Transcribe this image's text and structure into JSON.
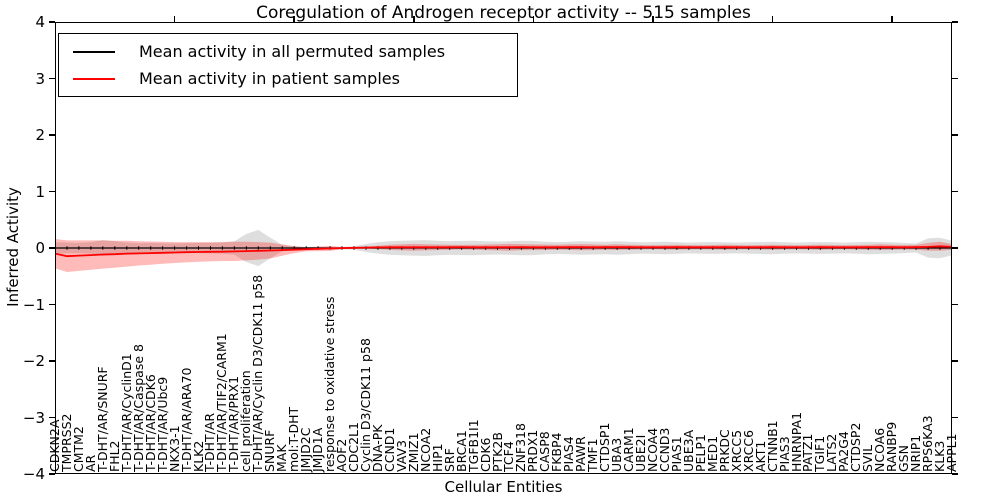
{
  "title": "Coregulation of Androgen receptor activity -- 515 samples",
  "axes": {
    "x_label": "Cellular Entities",
    "y_label": "Inferred Activity",
    "y_ticks": [
      {
        "value": 4,
        "label": "4"
      },
      {
        "value": 3,
        "label": "3"
      },
      {
        "value": 2,
        "label": "2"
      },
      {
        "value": 1,
        "label": "1"
      },
      {
        "value": 0,
        "label": "0"
      },
      {
        "value": -1,
        "label": "−1"
      },
      {
        "value": -2,
        "label": "−2"
      },
      {
        "value": -3,
        "label": "−3"
      },
      {
        "value": -4,
        "label": "−4"
      }
    ],
    "x_major_tick_positions": [
      10,
      20,
      30,
      40,
      50,
      60,
      70
    ]
  },
  "legend": {
    "entries": [
      {
        "label": "Mean activity in all permuted samples",
        "color": "#000000"
      },
      {
        "label": "Mean activity in patient samples",
        "color": "#ff0000"
      }
    ]
  },
  "chart_data": {
    "type": "line",
    "title": "Coregulation of Androgen receptor activity -- 515 samples",
    "xlabel": "Cellular Entities",
    "ylabel": "Inferred Activity",
    "ylim": [
      -4,
      4
    ],
    "xlim": [
      0,
      75
    ],
    "grid": false,
    "legend_position": "upper left",
    "categories": [
      "CDKN2A",
      "TMPRSS2",
      "CMTM2",
      "AR",
      "T-DHT/AR/SNURF",
      "FHL2",
      "T-DHT/AR/CyclinD1",
      "T-DHT/AR/Caspase 8",
      "T-DHT/AR/CDK6",
      "T-DHT/AR/Ubc9",
      "NKX3-1",
      "T-DHT/AR/ARA70",
      "KLK2",
      "T-DHT/AR",
      "T-DHT/AR/TIF2/CARM1",
      "T-DHT/AR/PRX1",
      "cell proliferation",
      "T-DHT/AR/Cyclin D3/CDK11 p58",
      "SNURF",
      "MAK",
      "mol:T-DHT",
      "JMJD2C",
      "JMJD1A",
      "response to oxidative stress",
      "AOF2",
      "CDC2L1",
      "Cyclin D3/CDK11 p58",
      "DNA-PK",
      "CCND1",
      "VAV3",
      "ZMIZ1",
      "NCOA2",
      "HIP1",
      "SRF",
      "BRCA1",
      "TGFB1I1",
      "CDK6",
      "PTK2B",
      "TCF4",
      "ZNF318",
      "PRDX1",
      "CASP8",
      "FKBP4",
      "PIAS4",
      "PAWR",
      "TMF1",
      "CTDSP1",
      "UBA3",
      "CARM1",
      "UBE2I",
      "NCOA4",
      "CCND3",
      "PIAS1",
      "UBE3A",
      "PELP1",
      "MED1",
      "PRKDC",
      "XRCC5",
      "XRCC6",
      "AKT1",
      "CTNNB1",
      "PIAS3",
      "HNRNPA1",
      "PATZ1",
      "TGIF1",
      "LATS2",
      "PA2G4",
      "CTDSP2",
      "SVIL",
      "NCOA6",
      "RANBP9",
      "GSN",
      "NRIP1",
      "RPS6KA3",
      "KLK3",
      "APPL1"
    ],
    "series": [
      {
        "name": "Mean activity in all permuted samples",
        "color": "#000000",
        "line_width": 1.2,
        "marker": "vertical-dash",
        "band_color": "#999999",
        "band_opacity": 0.32,
        "mean": 0,
        "std": [
          0.1,
          0.095,
          0.09,
          0.1,
          0.14,
          0.12,
          0.095,
          0.085,
          0.09,
          0.085,
          0.08,
          0.085,
          0.09,
          0.095,
          0.1,
          0.12,
          0.25,
          0.32,
          0.18,
          0.06,
          0.03,
          0.02,
          0.02,
          0.02,
          0.02,
          0.03,
          0.07,
          0.1,
          0.12,
          0.13,
          0.135,
          0.14,
          0.13,
          0.12,
          0.125,
          0.13,
          0.12,
          0.115,
          0.12,
          0.13,
          0.125,
          0.11,
          0.105,
          0.11,
          0.12,
          0.115,
          0.11,
          0.12,
          0.11,
          0.1,
          0.105,
          0.11,
          0.105,
          0.095,
          0.1,
          0.105,
          0.1,
          0.095,
          0.1,
          0.105,
          0.11,
          0.1,
          0.095,
          0.1,
          0.105,
          0.1,
          0.095,
          0.1,
          0.11,
          0.105,
          0.1,
          0.09,
          0.08,
          0.17,
          0.18,
          0.13
        ]
      },
      {
        "name": "Mean activity in patient samples",
        "color": "#ff0000",
        "line_width": 1.8,
        "marker": "none",
        "band_color": "#ff0000",
        "band_opacity": 0.27,
        "mean": [
          -0.1,
          -0.145,
          -0.135,
          -0.125,
          -0.115,
          -0.11,
          -0.1,
          -0.095,
          -0.09,
          -0.085,
          -0.08,
          -0.075,
          -0.07,
          -0.068,
          -0.065,
          -0.06,
          -0.055,
          -0.05,
          -0.045,
          -0.038,
          -0.03,
          -0.022,
          -0.015,
          -0.008,
          -0.002,
          0.003,
          0.007,
          0.01,
          0.012,
          0.012,
          0.013,
          0.013,
          0.012,
          0.013,
          0.014,
          0.013,
          0.012,
          0.013,
          0.013,
          0.014,
          0.013,
          0.012,
          0.013,
          0.015,
          0.014,
          0.013,
          0.014,
          0.015,
          0.014,
          0.013,
          0.012,
          0.013,
          0.014,
          0.013,
          0.012,
          0.013,
          0.014,
          0.013,
          0.012,
          0.013,
          0.014,
          0.013,
          0.012,
          0.013,
          0.014,
          0.013,
          0.012,
          0.013,
          0.014,
          0.015,
          0.014,
          0.013,
          0.014,
          0.02,
          0.03,
          0.02
        ],
        "std": [
          0.26,
          0.28,
          0.27,
          0.26,
          0.25,
          0.24,
          0.23,
          0.215,
          0.205,
          0.195,
          0.185,
          0.18,
          0.175,
          0.17,
          0.165,
          0.17,
          0.165,
          0.155,
          0.14,
          0.1,
          0.06,
          0.035,
          0.04,
          0.045,
          0.02,
          0.015,
          0.02,
          0.03,
          0.045,
          0.055,
          0.06,
          0.055,
          0.05,
          0.045,
          0.04,
          0.045,
          0.05,
          0.055,
          0.06,
          0.055,
          0.05,
          0.05,
          0.045,
          0.05,
          0.055,
          0.05,
          0.045,
          0.05,
          0.045,
          0.04,
          0.035,
          0.04,
          0.045,
          0.04,
          0.035,
          0.04,
          0.045,
          0.04,
          0.035,
          0.04,
          0.045,
          0.04,
          0.035,
          0.04,
          0.045,
          0.04,
          0.035,
          0.04,
          0.045,
          0.05,
          0.045,
          0.04,
          0.045,
          0.07,
          0.08,
          0.05
        ]
      }
    ]
  }
}
